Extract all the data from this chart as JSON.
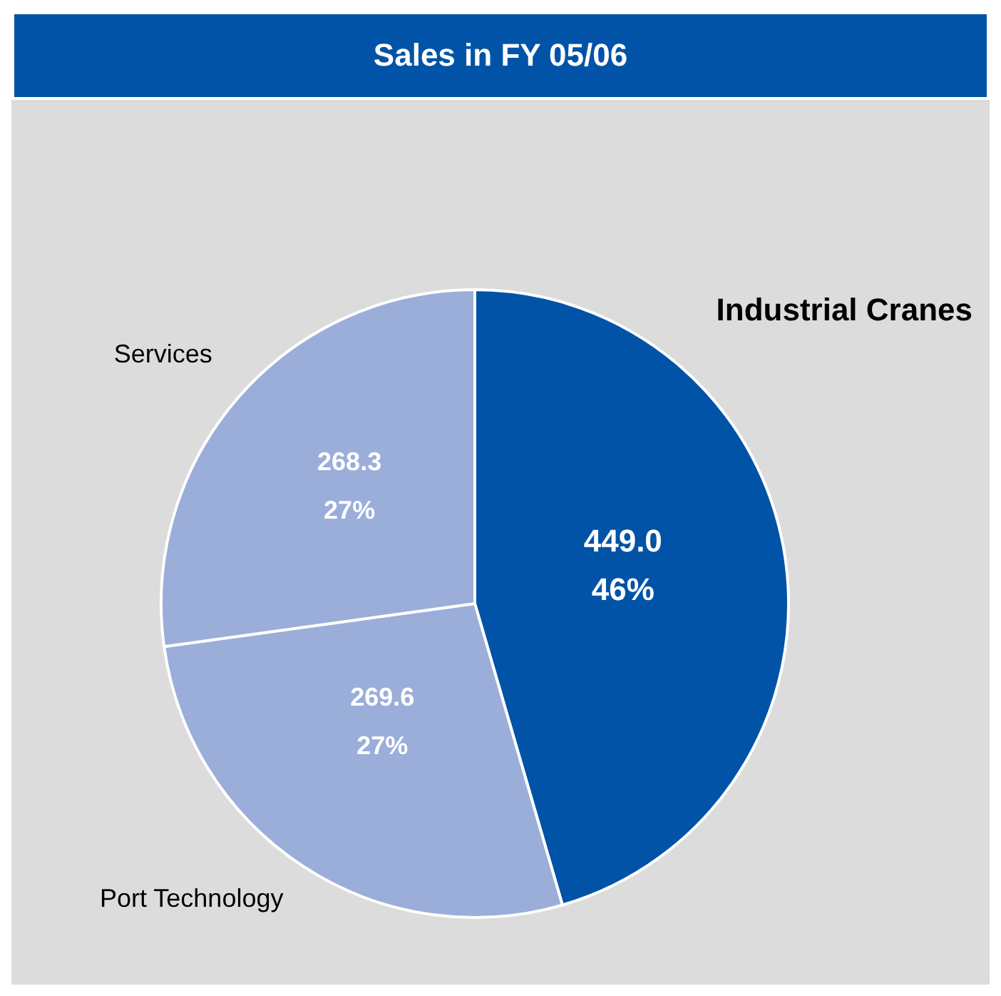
{
  "chart_data": {
    "type": "pie",
    "title": "Sales in FY 05/06",
    "categories": [
      "Industrial Cranes",
      "Port Technology",
      "Services"
    ],
    "values": [
      449.0,
      269.6,
      268.3
    ],
    "colors": [
      "#0053a6",
      "#9aaed9",
      "#9aaed9"
    ],
    "value_labels": [
      "449.0\n46%",
      "269.6\n27%",
      "268.3\n27%"
    ],
    "legend": false
  }
}
